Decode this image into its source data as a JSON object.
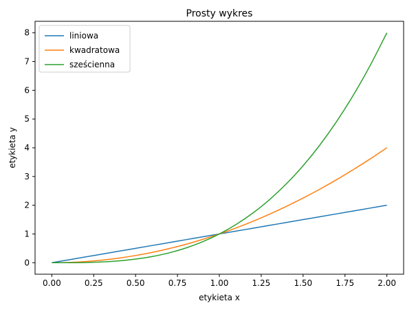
{
  "chart_data": {
    "type": "line",
    "title": "Prosty wykres",
    "xlabel": "etykieta x",
    "ylabel": "etykieta y",
    "xlim": [
      -0.1,
      2.1
    ],
    "ylim": [
      -0.4,
      8.4
    ],
    "xticks": [
      0.0,
      0.25,
      0.5,
      0.75,
      1.0,
      1.25,
      1.5,
      1.75,
      2.0
    ],
    "xtick_labels": [
      "0.00",
      "0.25",
      "0.50",
      "0.75",
      "1.00",
      "1.25",
      "1.50",
      "1.75",
      "2.00"
    ],
    "yticks": [
      0,
      1,
      2,
      3,
      4,
      5,
      6,
      7,
      8
    ],
    "ytick_labels": [
      "0",
      "1",
      "2",
      "3",
      "4",
      "5",
      "6",
      "7",
      "8"
    ],
    "grid": false,
    "legend_position": "top-left",
    "x": [
      0.0,
      0.1,
      0.2,
      0.3,
      0.4,
      0.5,
      0.6,
      0.7,
      0.8,
      0.9,
      1.0,
      1.1,
      1.2,
      1.3,
      1.4,
      1.5,
      1.6,
      1.7,
      1.8,
      1.9,
      2.0
    ],
    "series": [
      {
        "name": "liniowa",
        "color": "#1f77b4",
        "values": [
          0.0,
          0.1,
          0.2,
          0.3,
          0.4,
          0.5,
          0.6,
          0.7,
          0.8,
          0.9,
          1.0,
          1.1,
          1.2,
          1.3,
          1.4,
          1.5,
          1.6,
          1.7,
          1.8,
          1.9,
          2.0
        ]
      },
      {
        "name": "kwadratowa",
        "color": "#ff7f0e",
        "values": [
          0.0,
          0.01,
          0.04,
          0.09,
          0.16,
          0.25,
          0.36,
          0.49,
          0.64,
          0.81,
          1.0,
          1.21,
          1.44,
          1.69,
          1.96,
          2.25,
          2.56,
          2.89,
          3.24,
          3.61,
          4.0
        ]
      },
      {
        "name": "sześcienna",
        "color": "#2ca02c",
        "values": [
          0.0,
          0.001,
          0.008,
          0.027,
          0.064,
          0.125,
          0.216,
          0.343,
          0.512,
          0.729,
          1.0,
          1.331,
          1.728,
          2.197,
          2.744,
          3.375,
          4.096,
          4.913,
          5.832,
          6.859,
          8.0
        ]
      }
    ]
  }
}
